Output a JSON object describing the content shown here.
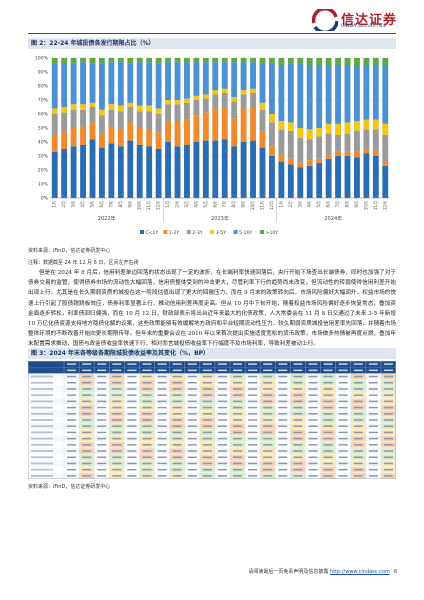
{
  "header": {
    "logo_cn": "信达证券",
    "logo_en": "CINDA SECURITIES"
  },
  "figure2": {
    "title": "图 2：22-24 年城投债各发行期限占比（%）",
    "source": "资料来源：iFinD，信达证券研发中心",
    "note": "注释：数据截至 24 年 12 月 6 日，区间左开右闭"
  },
  "chart_data": {
    "type": "bar",
    "stacked": true,
    "x_tick_labels": [
      "1月",
      "2月",
      "3月",
      "4月",
      "5月",
      "6月",
      "7月",
      "8月",
      "9月",
      "10月",
      "11月",
      "12月",
      "1月",
      "2月",
      "3月",
      "4月",
      "5月",
      "6月",
      "7月",
      "8月",
      "9月",
      "10月",
      "11月",
      "12月",
      "1月",
      "2月",
      "3月",
      "4月",
      "5月",
      "6月",
      "7月",
      "8月",
      "9月",
      "10月",
      "11月",
      "12月"
    ],
    "x_group_labels": [
      "2022年",
      "2023年",
      "2024年"
    ],
    "ylim": [
      0,
      100
    ],
    "y_ticks": [
      "0%",
      "10%",
      "20%",
      "30%",
      "40%",
      "50%",
      "60%",
      "70%",
      "80%",
      "90%",
      "100%"
    ],
    "legend_position": "bottom",
    "series": [
      {
        "name": "C<1Y",
        "color": "#2b6db4",
        "values": [
          33,
          35,
          37,
          38,
          42,
          36,
          39,
          37,
          41,
          38,
          37,
          35,
          40,
          37,
          38,
          40,
          41,
          41,
          42,
          37,
          40,
          41,
          36,
          30,
          26,
          24,
          22,
          23,
          25,
          28,
          30,
          30,
          29,
          32,
          30,
          23
        ]
      },
      {
        "name": "1-2Y",
        "color": "#f08a2c",
        "values": [
          12,
          12,
          13,
          13,
          12,
          10,
          12,
          12,
          13,
          12,
          12,
          12,
          15,
          18,
          18,
          19,
          20,
          23,
          23,
          20,
          24,
          24,
          12,
          7,
          5,
          4,
          3,
          4,
          3,
          3,
          3,
          3,
          4,
          3,
          3,
          3
        ]
      },
      {
        "name": "2-3Y",
        "color": "#9a9a9a",
        "values": [
          15,
          14,
          13,
          12,
          11,
          13,
          12,
          13,
          11,
          12,
          13,
          13,
          12,
          12,
          12,
          11,
          10,
          10,
          10,
          12,
          10,
          10,
          15,
          17,
          18,
          20,
          18,
          15,
          16,
          15,
          12,
          13,
          15,
          14,
          16,
          19
        ]
      },
      {
        "name": "3-5Y",
        "color": "#f3c613",
        "values": [
          4,
          4,
          4,
          4,
          3,
          4,
          4,
          4,
          3,
          4,
          4,
          4,
          3,
          3,
          3,
          3,
          3,
          3,
          3,
          3,
          3,
          3,
          5,
          6,
          6,
          6,
          7,
          7,
          6,
          7,
          8,
          8,
          7,
          7,
          7,
          8
        ]
      },
      {
        "name": "5-10Y",
        "color": "#4b91d4",
        "values": [
          32,
          31,
          29,
          30,
          28,
          33,
          30,
          31,
          28,
          31,
          31,
          32,
          27,
          27,
          26,
          24,
          23,
          20,
          19,
          25,
          20,
          19,
          28,
          36,
          40,
          42,
          46,
          46,
          45,
          42,
          42,
          41,
          40,
          39,
          39,
          42
        ]
      },
      {
        "name": ">10Y",
        "color": "#5ea744",
        "values": [
          4,
          4,
          4,
          3,
          4,
          4,
          3,
          3,
          4,
          3,
          3,
          4,
          3,
          3,
          3,
          3,
          3,
          3,
          3,
          3,
          3,
          3,
          4,
          4,
          5,
          4,
          4,
          5,
          5,
          5,
          5,
          5,
          5,
          5,
          5,
          5
        ]
      }
    ]
  },
  "body_text": [
    "但是在 2024 年 8 月后，信用利差单边回落的状态出现了一定的波折，在长端利率快速回落后，央行开始下场查出长端债券，同时也加强了对于债券交易的监管，使得债券市场的流动性大幅回落，信用债整体受到的冲击更大，尽管利率下行的趋势尚未改变，但流动性的转弱使得信用利差开始出现上行，尤其是在长久期弱资质的城投在这一阶段估值出现了更大的回撤压力，而在 9 月末的政策转向后，市场风险偏好大幅调升，权益市场的快速上行引起了股债跷跷板效应，债券利率显著上行，推动信用利差再度走高。但从 10 月中下旬开始，随着权益市场风险偏好逐步恢复常态，叠加资金面逐步转松，利率债回归偏强，而在 10 月 12 日，财政部表示将出台近年来最大的化债政策，人大常委会在 11 月 8 日又通过了未来 3-5 年新增 10 万亿化债资源支持地方隐债化解的议案，这些政策能够有效缓解地方政府和平台短期流动性压力，较久期弱资质城投信用差率先回落，并随着市场整体环境的不断改善开始向更长期限传导。但年末的重要会议在 2010 年以来首次提出实施适度宽松的货币政策，市场做多热情被再度点燃，叠加年末配置需求推动，国债与政金债收益率快速下行，相对而言城投债收益率下行幅度不及市场利率，导致利差被动上行。"
  ],
  "figure3": {
    "title": "图 3：2024 年末各等级各期限城投债收益率及其变化（%，BP）",
    "source": "资料来源：iFinD，信达证券研发中心"
  }
}
